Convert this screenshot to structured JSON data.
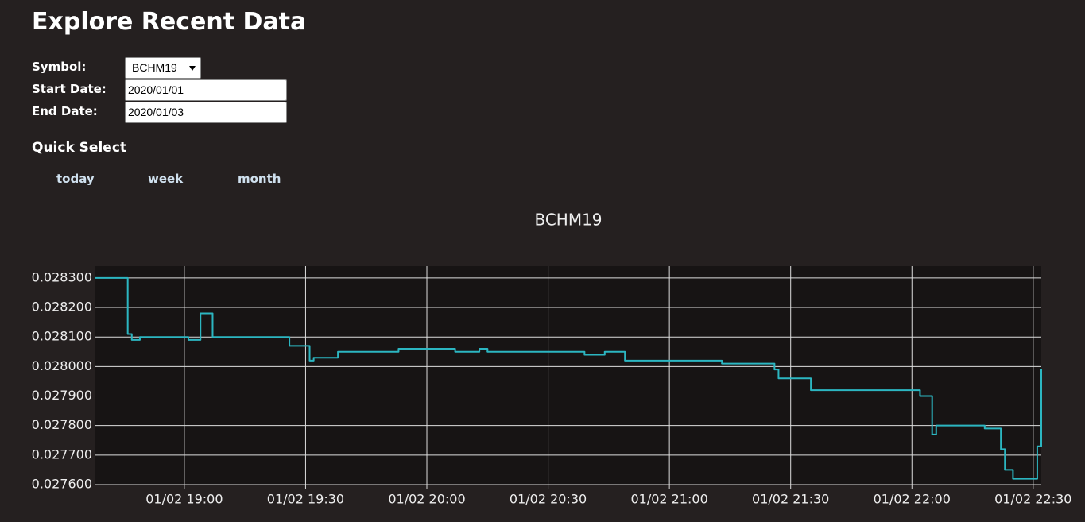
{
  "header": {
    "title": "Explore Recent Data"
  },
  "form": {
    "symbol_label": "Symbol:",
    "symbol": "BCHM19",
    "start_label": "Start Date:",
    "start": "2020/01/01",
    "end_label": "End Date:",
    "end": "2020/01/03"
  },
  "quick_select": {
    "title": "Quick Select",
    "options": [
      "today",
      "week",
      "month"
    ]
  },
  "chart_data": {
    "type": "line",
    "step": true,
    "title": "BCHM19",
    "grid": true,
    "x": [
      "01/02 18:38",
      "01/02 18:46",
      "01/02 18:47",
      "01/02 18:49",
      "01/02 19:01",
      "01/02 19:04",
      "01/02 19:07",
      "01/02 19:26",
      "01/02 19:31",
      "01/02 19:32",
      "01/02 19:38",
      "01/02 19:53",
      "01/02 20:07",
      "01/02 20:13",
      "01/02 20:15",
      "01/02 20:39",
      "01/02 20:44",
      "01/02 20:49",
      "01/02 21:13",
      "01/02 21:26",
      "01/02 21:27",
      "01/02 21:35",
      "01/02 22:02",
      "01/02 22:05",
      "01/02 22:06",
      "01/02 22:18",
      "01/02 22:22",
      "01/02 22:23",
      "01/02 22:25",
      "01/02 22:31",
      "01/02 22:32"
    ],
    "series": [
      {
        "color": "#2cb6c1",
        "values": [
          0.0283,
          0.02811,
          0.02809,
          0.0281,
          0.02809,
          0.02818,
          0.0281,
          0.02807,
          0.02802,
          0.02803,
          0.02805,
          0.02806,
          0.02805,
          0.02806,
          0.02805,
          0.02804,
          0.02805,
          0.02802,
          0.02801,
          0.02799,
          0.02796,
          0.02792,
          0.0279,
          0.02777,
          0.0278,
          0.02779,
          0.02772,
          0.02765,
          0.02762,
          0.02773,
          0.02799
        ]
      }
    ],
    "xlim": [
      "01/02 18:38",
      "01/02 22:32"
    ],
    "xticks": [
      "01/02 19:00",
      "01/02 19:30",
      "01/02 20:00",
      "01/02 20:30",
      "01/02 21:00",
      "01/02 21:30",
      "01/02 22:00",
      "01/02 22:30"
    ],
    "ylim": [
      0.0276,
      0.02834
    ],
    "yticks": [
      {
        "value": 0.0276,
        "label": "0.027600"
      },
      {
        "value": 0.0277,
        "label": "0.027700"
      },
      {
        "value": 0.0278,
        "label": "0.027800"
      },
      {
        "value": 0.0279,
        "label": "0.027900"
      },
      {
        "value": 0.028,
        "label": "0.028000"
      },
      {
        "value": 0.0281,
        "label": "0.028100"
      },
      {
        "value": 0.0282,
        "label": "0.028200"
      },
      {
        "value": 0.0283,
        "label": "0.028300"
      }
    ]
  }
}
